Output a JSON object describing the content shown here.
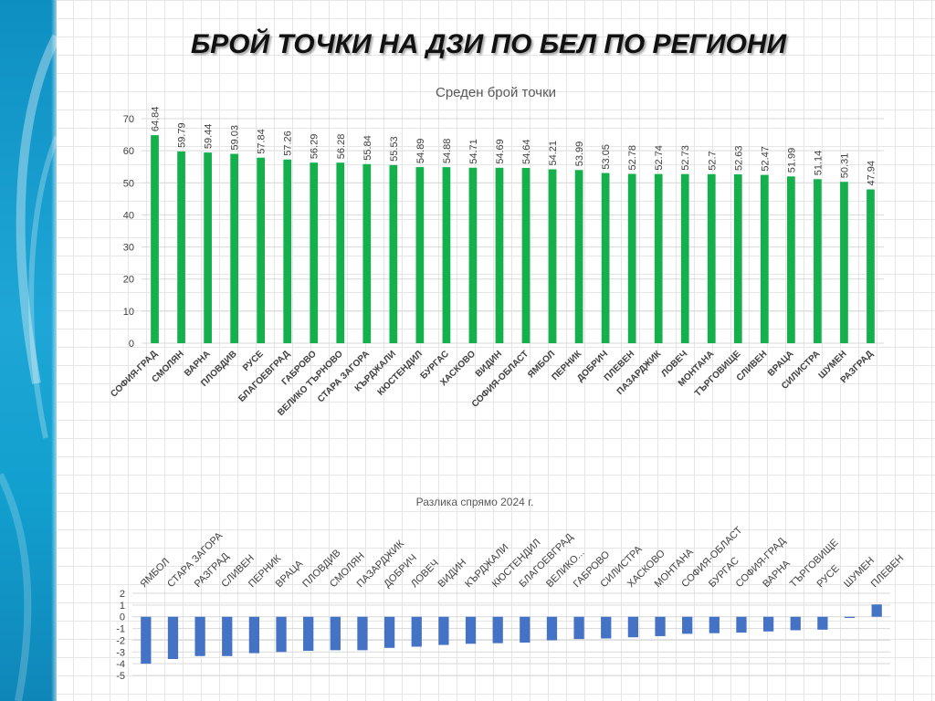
{
  "slide": {
    "title": "БРОЙ ТОЧКИ НА ДЗИ ПО БЕЛ ПО РЕГИОНИ"
  },
  "colors": {
    "bar_green": "#13b04b",
    "bar_blue": "#4472c4",
    "accent_band": "#1ea6d6"
  },
  "chart_data": [
    {
      "type": "bar",
      "title": "Среден брой точки",
      "xlabel": "",
      "ylabel": "",
      "ylim": [
        0,
        70
      ],
      "yticks": [
        0,
        10,
        20,
        30,
        40,
        50,
        60,
        70
      ],
      "grid": true,
      "data_labels": true,
      "categories": [
        "СОФИЯ-ГРАД",
        "СМОЛЯН",
        "ВАРНА",
        "ПЛОВДИВ",
        "РУСЕ",
        "БЛАГОЕВГРАД",
        "ГАБРОВО",
        "ВЕЛИКО ТЪРНОВО",
        "СТАРА ЗАГОРА",
        "КЪРДЖАЛИ",
        "КЮСТЕНДИЛ",
        "БУРГАС",
        "ХАСКОВО",
        "ВИДИН",
        "СОФИЯ-ОБЛАСТ",
        "ЯМБОЛ",
        "ПЕРНИК",
        "ДОБРИЧ",
        "ПЛЕВЕН",
        "ПАЗАРДЖИК",
        "ЛОВЕЧ",
        "МОНТАНА",
        "ТЪРГОВИЩЕ",
        "СЛИВЕН",
        "ВРАЦА",
        "СИЛИСТРА",
        "ШУМЕН",
        "РАЗГРАД"
      ],
      "values": [
        64.84,
        59.79,
        59.44,
        59.03,
        57.84,
        57.26,
        56.29,
        56.28,
        55.84,
        55.53,
        54.89,
        54.88,
        54.71,
        54.69,
        54.64,
        54.21,
        53.99,
        53.05,
        52.78,
        52.74,
        52.73,
        52.7,
        52.63,
        52.47,
        51.99,
        51.14,
        50.31,
        47.94
      ],
      "value_labels": [
        "64.84",
        "59.79",
        "59.44",
        "59.03",
        "57.84",
        "57.26",
        "56.29",
        "56.28",
        "55.84",
        "55.53",
        "54.89",
        "54.88",
        "54.71",
        "54.69",
        "54.64",
        "54.21",
        "53.99",
        "53.05",
        "52.78",
        "52.74",
        "52.73",
        "52.7",
        "52.63",
        "52.47",
        "51.99",
        "51.14",
        "50.31",
        "47.94"
      ],
      "color": "#13b04b"
    },
    {
      "type": "bar",
      "title": "Разлика спрямо 2024 г.",
      "xlabel": "",
      "ylabel": "",
      "ylim": [
        -5,
        2
      ],
      "yticks": [
        -5,
        -4,
        -3,
        -2,
        -1,
        0,
        1,
        2
      ],
      "grid": true,
      "data_labels": false,
      "categories": [
        "ЯМБОЛ",
        "СТАРА ЗАГОРА",
        "РАЗГРАД",
        "СЛИВЕН",
        "ПЕРНИК",
        "ВРАЦА",
        "ПЛОВДИВ",
        "СМОЛЯН",
        "ПАЗАРДЖИК",
        "ДОБРИЧ",
        "ЛОВЕЧ",
        "ВИДИН",
        "КЪРДЖАЛИ",
        "КЮСТЕНДИЛ",
        "БЛАГОЕВГРАД",
        "ВЕЛИКО...",
        "ГАБРОВО",
        "СИЛИСТРА",
        "ХАСКОВО",
        "МОНТАНА",
        "СОФИЯ-ОБЛАСТ",
        "БУРГАС",
        "СОФИЯ-ГРАД",
        "ВАРНА",
        "ТЪРГОВИЩЕ",
        "РУСЕ",
        "ШУМЕН",
        "ПЛЕВЕН"
      ],
      "values": [
        -4.0,
        -3.6,
        -3.35,
        -3.35,
        -3.1,
        -3.0,
        -2.9,
        -2.85,
        -2.85,
        -2.65,
        -2.55,
        -2.4,
        -2.3,
        -2.25,
        -2.2,
        -2.0,
        -1.9,
        -1.85,
        -1.75,
        -1.65,
        -1.45,
        -1.4,
        -1.35,
        -1.25,
        -1.15,
        -1.1,
        -0.1,
        1.05
      ],
      "color": "#4472c4"
    }
  ]
}
